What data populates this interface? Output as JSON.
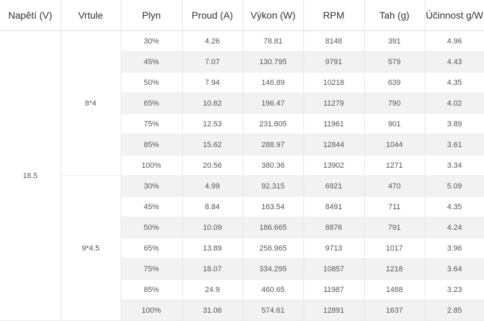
{
  "headers": [
    "Napětí (V)",
    "Vrtule",
    "Plyn",
    "Proud (A)",
    "Výkon (W)",
    "RPM",
    "Tah (g)",
    "Účinnost g/W"
  ],
  "voltage": "18.5",
  "groups": [
    {
      "propeller": "8*4",
      "rows": [
        [
          "30%",
          "4.26",
          "78.81",
          "8148",
          "391",
          "4.96"
        ],
        [
          "45%",
          "7.07",
          "130.795",
          "9791",
          "579",
          "4.43"
        ],
        [
          "50%",
          "7.94",
          "146.89",
          "10218",
          "639",
          "4.35"
        ],
        [
          "65%",
          "10.62",
          "196.47",
          "11279",
          "790",
          "4.02"
        ],
        [
          "75%",
          "12.53",
          "231.805",
          "11961",
          "901",
          "3.89"
        ],
        [
          "85%",
          "15.62",
          "288.97",
          "12844",
          "1044",
          "3.61"
        ],
        [
          "100%",
          "20.56",
          "380.36",
          "13902",
          "1271",
          "3.34"
        ]
      ]
    },
    {
      "propeller": "9*4.5",
      "rows": [
        [
          "30%",
          "4.99",
          "92.315",
          "6921",
          "470",
          "5.09"
        ],
        [
          "45%",
          "8.84",
          "163.54",
          "8491",
          "711",
          "4.35"
        ],
        [
          "50%",
          "10.09",
          "186.665",
          "8876",
          "791",
          "4.24"
        ],
        [
          "65%",
          "13.89",
          "256.965",
          "9713",
          "1017",
          "3.96"
        ],
        [
          "75%",
          "18.07",
          "334.295",
          "10857",
          "1218",
          "3.64"
        ],
        [
          "85%",
          "24.9",
          "460.65",
          "11987",
          "1488",
          "3.23"
        ],
        [
          "100%",
          "31.06",
          "574.61",
          "12891",
          "1637",
          "2.85"
        ]
      ]
    }
  ]
}
